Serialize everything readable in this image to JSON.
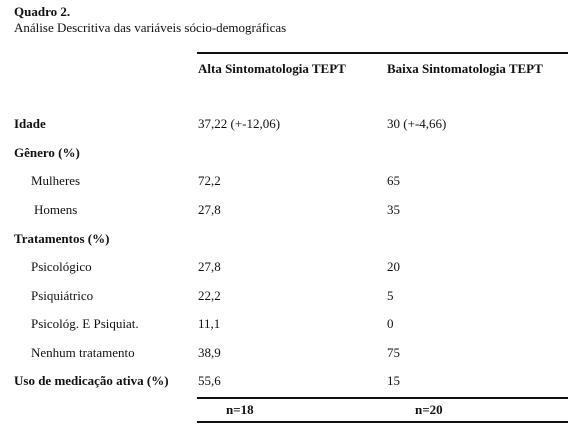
{
  "caption": {
    "title": "Quadro 2.",
    "subtitle": "Análise Descritiva das variáveis sócio-demográficas"
  },
  "table": {
    "columns": [
      "Alta Sintomatologia TEPT",
      "Baixa Sintomatologia TEPT"
    ],
    "rows": [
      {
        "label": "Idade",
        "bold": true,
        "values": [
          "37,22 (+-12,06)",
          "30 (+-4,66)"
        ]
      },
      {
        "label": "Gênero (%)",
        "bold": true,
        "values": [
          "",
          ""
        ]
      },
      {
        "label": "Mulheres",
        "bold": false,
        "values": [
          "72,2",
          "65"
        ]
      },
      {
        "label": "Homens",
        "bold": false,
        "values": [
          "27,8",
          "35"
        ]
      },
      {
        "label": "Tratamentos (%)",
        "bold": true,
        "values": [
          "",
          ""
        ]
      },
      {
        "label": "Psicológico",
        "bold": false,
        "values": [
          "27,8",
          "20"
        ]
      },
      {
        "label": "Psiquiátrico",
        "bold": false,
        "values": [
          "22,2",
          "5"
        ]
      },
      {
        "label": "Psicológ. E Psiquiat.",
        "bold": false,
        "values": [
          "11,1",
          "0"
        ]
      },
      {
        "label": "Nenhum tratamento",
        "bold": false,
        "values": [
          "38,9",
          "75"
        ]
      },
      {
        "label": "Uso de medicação ativa (%)",
        "bold": true,
        "values": [
          "55,6",
          "15"
        ]
      }
    ],
    "n_values": [
      "n=18",
      "n=20"
    ]
  }
}
